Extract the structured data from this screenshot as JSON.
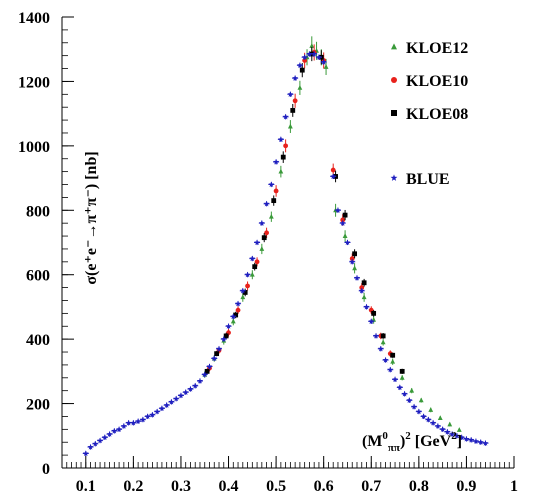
{
  "chart_data": {
    "type": "scatter",
    "title": "",
    "xlabel": {
      "base": "(M",
      "sup": "0",
      "sub": "ππ",
      "rest": ")",
      "sup2": "2",
      "unit_open": " [GeV",
      "unit_sup": "2",
      "unit_close": "]"
    },
    "ylabel": "σ(e⁺e⁻→π⁺π⁻) [nb]",
    "xlim": [
      0.05,
      1.0
    ],
    "ylim": [
      0,
      1400
    ],
    "x_ticks": [
      "0.1",
      "0.2",
      "0.3",
      "0.4",
      "0.5",
      "0.6",
      "0.7",
      "0.8",
      "0.9",
      "1"
    ],
    "x_tick_values": [
      0.1,
      0.2,
      0.3,
      0.4,
      0.5,
      0.6,
      0.7,
      0.8,
      0.9,
      1.0
    ],
    "y_ticks": [
      "0",
      "200",
      "400",
      "600",
      "800",
      "1000",
      "1200",
      "1400"
    ],
    "y_tick_values": [
      0,
      200,
      400,
      600,
      800,
      1000,
      1200,
      1400
    ],
    "grid": false,
    "legend_position": "top-right",
    "series": [
      {
        "name": "KLOE12",
        "marker": "triangle",
        "color": "#3a9a3a",
        "x": [
          0.35,
          0.37,
          0.39,
          0.41,
          0.43,
          0.45,
          0.47,
          0.49,
          0.51,
          0.53,
          0.55,
          0.565,
          0.575,
          0.585,
          0.595,
          0.605,
          0.625,
          0.645,
          0.665,
          0.685,
          0.705,
          0.725,
          0.745,
          0.765,
          0.785,
          0.805,
          0.825,
          0.845,
          0.865,
          0.885
        ],
        "y": [
          290,
          340,
          395,
          455,
          530,
          600,
          680,
          780,
          920,
          1060,
          1180,
          1275,
          1310,
          1295,
          1275,
          1245,
          800,
          720,
          620,
          530,
          460,
          390,
          330,
          280,
          240,
          210,
          180,
          155,
          135,
          118
        ],
        "err": [
          10,
          10,
          12,
          12,
          14,
          14,
          16,
          16,
          18,
          20,
          22,
          25,
          30,
          28,
          25,
          25,
          20,
          18,
          16,
          14,
          12,
          10,
          10,
          8,
          8,
          7,
          7,
          6,
          6,
          5
        ]
      },
      {
        "name": "KLOE10",
        "marker": "circle",
        "color": "#e8211b",
        "x": [
          0.36,
          0.38,
          0.4,
          0.42,
          0.44,
          0.46,
          0.48,
          0.5,
          0.52,
          0.54,
          0.56,
          0.58,
          0.6,
          0.62,
          0.64,
          0.66,
          0.68,
          0.7,
          0.72,
          0.74
        ],
        "y": [
          310,
          365,
          420,
          490,
          565,
          640,
          730,
          860,
          1000,
          1140,
          1265,
          1290,
          1265,
          925,
          770,
          650,
          560,
          490,
          410,
          355
        ],
        "err": [
          10,
          10,
          12,
          12,
          14,
          14,
          16,
          18,
          20,
          22,
          24,
          25,
          25,
          20,
          18,
          16,
          14,
          12,
          10,
          10
        ]
      },
      {
        "name": "KLOE08",
        "marker": "square",
        "color": "#000000",
        "x": [
          0.355,
          0.375,
          0.395,
          0.415,
          0.435,
          0.455,
          0.475,
          0.495,
          0.515,
          0.535,
          0.555,
          0.575,
          0.595,
          0.625,
          0.645,
          0.665,
          0.685,
          0.705,
          0.725,
          0.745,
          0.765
        ],
        "y": [
          300,
          355,
          410,
          475,
          545,
          625,
          715,
          830,
          965,
          1110,
          1235,
          1285,
          1275,
          905,
          785,
          665,
          575,
          480,
          410,
          350,
          300
        ],
        "err": [
          8,
          8,
          10,
          10,
          12,
          12,
          14,
          16,
          18,
          20,
          22,
          22,
          22,
          18,
          16,
          14,
          12,
          10,
          9,
          8,
          8
        ]
      },
      {
        "name": "BLUE",
        "marker": "star",
        "color": "#1f1fbf",
        "x": [
          0.1,
          0.11,
          0.12,
          0.13,
          0.14,
          0.15,
          0.16,
          0.17,
          0.18,
          0.19,
          0.2,
          0.21,
          0.22,
          0.23,
          0.24,
          0.25,
          0.26,
          0.27,
          0.28,
          0.29,
          0.3,
          0.31,
          0.32,
          0.33,
          0.34,
          0.35,
          0.36,
          0.37,
          0.38,
          0.39,
          0.4,
          0.41,
          0.42,
          0.43,
          0.44,
          0.45,
          0.46,
          0.47,
          0.48,
          0.49,
          0.5,
          0.51,
          0.52,
          0.53,
          0.54,
          0.55,
          0.56,
          0.57,
          0.58,
          0.59,
          0.6,
          0.62,
          0.63,
          0.64,
          0.65,
          0.66,
          0.67,
          0.68,
          0.69,
          0.7,
          0.71,
          0.72,
          0.73,
          0.74,
          0.75,
          0.76,
          0.77,
          0.78,
          0.79,
          0.8,
          0.81,
          0.82,
          0.83,
          0.84,
          0.85,
          0.86,
          0.87,
          0.88,
          0.89,
          0.9,
          0.91,
          0.92,
          0.93,
          0.94
        ],
        "y": [
          45,
          65,
          75,
          85,
          95,
          105,
          115,
          120,
          130,
          140,
          140,
          145,
          150,
          160,
          165,
          175,
          185,
          195,
          205,
          215,
          225,
          235,
          245,
          255,
          270,
          290,
          315,
          340,
          370,
          400,
          440,
          470,
          510,
          550,
          600,
          650,
          700,
          760,
          820,
          880,
          950,
          1020,
          1090,
          1160,
          1210,
          1250,
          1275,
          1285,
          1285,
          1275,
          1260,
          905,
          800,
          760,
          700,
          640,
          590,
          550,
          500,
          455,
          410,
          370,
          335,
          305,
          275,
          250,
          230,
          210,
          190,
          175,
          160,
          150,
          140,
          130,
          120,
          112,
          105,
          100,
          95,
          90,
          87,
          83,
          80,
          77
        ],
        "err": [
          8,
          8,
          8,
          8,
          8,
          8,
          8,
          8,
          8,
          8,
          8,
          8,
          8,
          8,
          8,
          8,
          8,
          8,
          8,
          8,
          8,
          8,
          8,
          8,
          8,
          8,
          8,
          8,
          8,
          8,
          8,
          8,
          8,
          8,
          8,
          8,
          8,
          8,
          8,
          8,
          8,
          8,
          8,
          8,
          8,
          8,
          8,
          8,
          8,
          8,
          8,
          8,
          8,
          8,
          8,
          8,
          8,
          8,
          8,
          8,
          8,
          8,
          8,
          8,
          8,
          8,
          8,
          8,
          8,
          8,
          8,
          8,
          8,
          8,
          8,
          8,
          8,
          8,
          8,
          8,
          8,
          8,
          8,
          8
        ]
      }
    ]
  }
}
